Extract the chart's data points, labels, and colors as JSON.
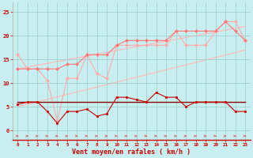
{
  "x": [
    0,
    1,
    2,
    3,
    4,
    5,
    6,
    7,
    8,
    9,
    10,
    11,
    12,
    13,
    14,
    15,
    16,
    17,
    18,
    19,
    20,
    21,
    22,
    23
  ],
  "line_zigzag_light": [
    16,
    13,
    13,
    10.5,
    2,
    11,
    11,
    16,
    12,
    11,
    18,
    18,
    18,
    18,
    18,
    18,
    21,
    18,
    18,
    18,
    21,
    23,
    23,
    19
  ],
  "line_zigzag_mid": [
    13,
    13,
    13,
    13,
    13,
    14,
    14,
    16,
    16,
    16,
    18,
    19,
    19,
    19,
    19,
    19,
    21,
    21,
    21,
    21,
    21,
    23,
    21,
    19
  ],
  "line_trend_upper": [
    5.0,
    5.52,
    6.04,
    6.57,
    7.09,
    7.61,
    8.13,
    8.65,
    9.17,
    9.7,
    10.22,
    10.74,
    11.26,
    11.78,
    12.3,
    12.83,
    13.35,
    13.87,
    14.39,
    14.91,
    15.43,
    15.96,
    16.48,
    17.0
  ],
  "line_trend_lower": [
    13.0,
    13.39,
    13.78,
    14.17,
    14.57,
    14.96,
    15.35,
    15.74,
    16.13,
    16.52,
    16.91,
    17.3,
    17.7,
    18.09,
    18.48,
    18.87,
    19.26,
    19.65,
    20.04,
    20.43,
    20.83,
    21.22,
    21.61,
    22.0
  ],
  "line_dark_zigzag": [
    5.5,
    6,
    6,
    4,
    1.5,
    4,
    4,
    4.5,
    3,
    3.5,
    7,
    7,
    6.5,
    6,
    8,
    7,
    7,
    5,
    6,
    6,
    6,
    6,
    4,
    4
  ],
  "line_dark_flat": [
    6.0,
    6.0,
    6.0,
    6.0,
    6.0,
    6.0,
    6.0,
    6.0,
    6.0,
    6.0,
    6.0,
    6.0,
    6.0,
    6.0,
    6.0,
    6.0,
    6.0,
    6.0,
    6.0,
    6.0,
    6.0,
    6.0,
    6.0,
    6.0
  ],
  "bg_color": "#c8eef0",
  "grid_color": "#99cccc",
  "line_zigzag_light_color": "#ffaaaa",
  "line_zigzag_mid_color": "#ff7777",
  "line_trend_upper_color": "#ffbbbb",
  "line_trend_lower_color": "#ffbbbb",
  "line_dark_zigzag_color": "#cc0000",
  "line_dark_flat_color": "#880000",
  "xlabel": "Vent moyen/en rafales ( km/h )",
  "xlabel_color": "#cc0000",
  "tick_color": "#cc0000",
  "arrow_color": "#dd4444",
  "ylim": [
    -2,
    27
  ],
  "xlim": [
    -0.5,
    23.5
  ]
}
